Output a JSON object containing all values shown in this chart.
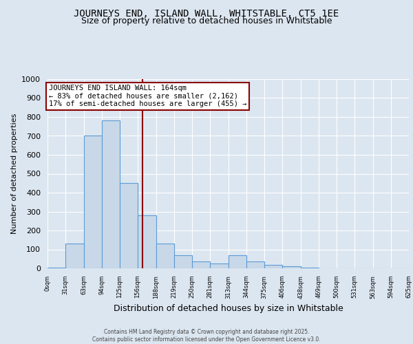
{
  "title": "JOURNEYS END, ISLAND WALL, WHITSTABLE, CT5 1EE",
  "subtitle": "Size of property relative to detached houses in Whitstable",
  "xlabel": "Distribution of detached houses by size in Whitstable",
  "ylabel": "Number of detached properties",
  "bin_edges": [
    0,
    31,
    63,
    94,
    125,
    156,
    188,
    219,
    250,
    281,
    313,
    344,
    375,
    406,
    438,
    469,
    500,
    531,
    563,
    594,
    625
  ],
  "bar_heights": [
    3,
    130,
    700,
    780,
    450,
    280,
    130,
    68,
    35,
    25,
    70,
    35,
    20,
    10,
    3,
    0,
    0,
    0,
    0,
    0
  ],
  "bar_color": "#c8d8e8",
  "bar_edge_color": "#5b9bd5",
  "property_size": 164,
  "vline_color": "#8b0000",
  "annotation_line1": "JOURNEYS END ISLAND WALL: 164sqm",
  "annotation_line2": "← 83% of detached houses are smaller (2,162)",
  "annotation_line3": "17% of semi-detached houses are larger (455) →",
  "annotation_box_color": "#ffffff",
  "annotation_box_edgecolor": "#8b0000",
  "ylim": [
    0,
    1000
  ],
  "yticks": [
    0,
    100,
    200,
    300,
    400,
    500,
    600,
    700,
    800,
    900,
    1000
  ],
  "background_color": "#dce6f0",
  "plot_bg_color": "#dce6f0",
  "footer_text": "Contains HM Land Registry data © Crown copyright and database right 2025.\nContains public sector information licensed under the Open Government Licence v3.0.",
  "title_fontsize": 10,
  "subtitle_fontsize": 9,
  "ylabel_fontsize": 8,
  "xlabel_fontsize": 9
}
